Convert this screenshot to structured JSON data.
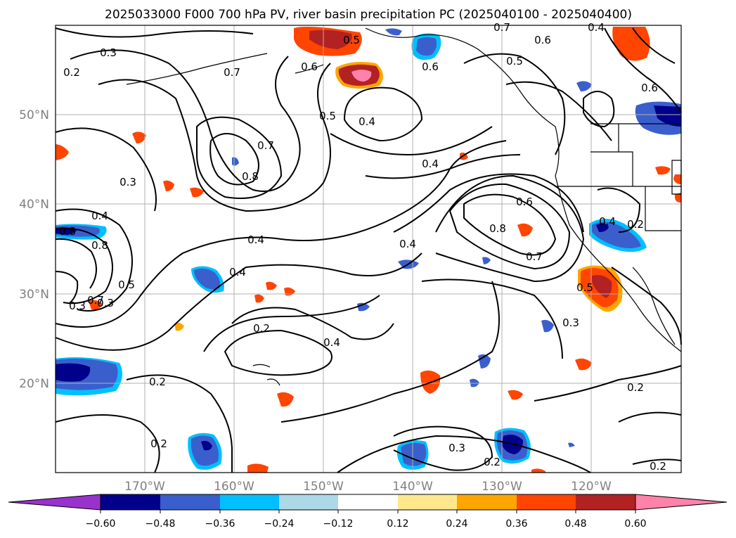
{
  "figure": {
    "title": "2025033000 F000 700 hPa PV, river basin precipitation PC (2025040100 - 2025040400)"
  },
  "axes": {
    "lat_labels": [
      "50°N",
      "40°N",
      "30°N",
      "20°N"
    ],
    "lon_labels": [
      "170°W",
      "160°W",
      "150°W",
      "140°W",
      "130°W",
      "120°W"
    ],
    "label_color": "#808080"
  },
  "colorbar": {
    "ticks": [
      "−0.60",
      "−0.48",
      "−0.36",
      "−0.24",
      "−0.12",
      "0.12",
      "0.24",
      "0.36",
      "0.48",
      "0.60"
    ],
    "colors": [
      "#9932cc",
      "#00008b",
      "#3a5fcd",
      "#00bfff",
      "#add8e6",
      "#ffffff",
      "#ffe78a",
      "#ffa500",
      "#ff4500",
      "#b22222",
      "#ff82ab"
    ]
  },
  "contour_labels": [
    "0.2",
    "0.3",
    "0.7",
    "0.6",
    "0.5",
    "0.6",
    "0.5",
    "0.7",
    "0.6",
    "0.4",
    "0.5",
    "0.4",
    "0.7",
    "0.8",
    "0.3",
    "0.4",
    "0.4",
    "0.4",
    "0.8",
    "0.6",
    "0.8",
    "0.5",
    "0.3",
    "0.8",
    "0.7",
    "0.4",
    "0.6",
    "0.4",
    "0.4",
    "0.2",
    "0.3",
    "0.7",
    "0.5",
    "0.2",
    "0.4",
    "0.2",
    "0.3",
    "0.2",
    "0.2",
    "0.2",
    "0.3",
    "0.2"
  ]
}
